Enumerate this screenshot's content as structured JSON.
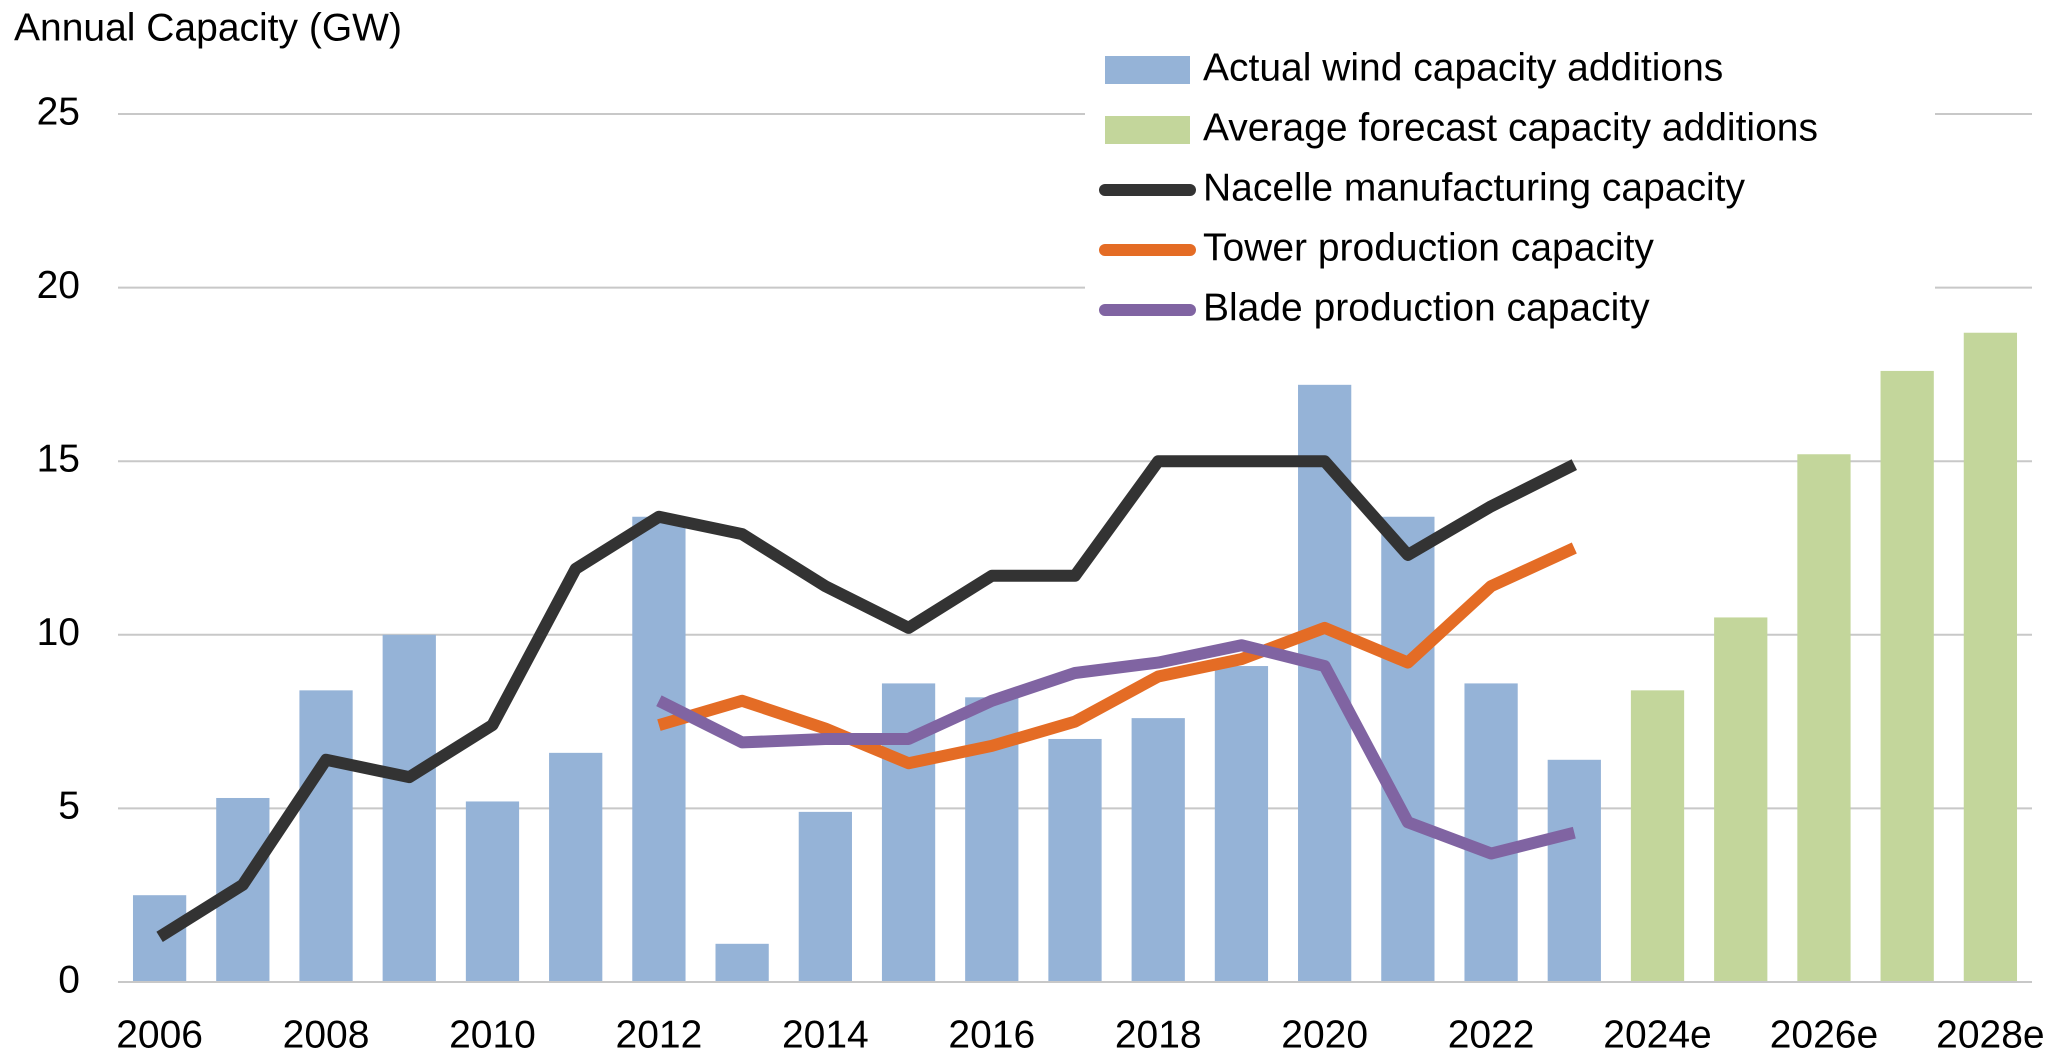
{
  "chart_data": {
    "type": "bar",
    "ylabel": "Annual Capacity (GW)",
    "categories": [
      "2006",
      null,
      "2008",
      null,
      "2010",
      null,
      "2012",
      null,
      "2014",
      null,
      "2016",
      null,
      "2018",
      null,
      "2020",
      null,
      "2022",
      null,
      "2024e",
      null,
      "2026e",
      null,
      "2028e"
    ],
    "ylim": [
      0,
      25
    ],
    "yticks": [
      0,
      5,
      10,
      15,
      20,
      25
    ],
    "grid": true,
    "legend": "top-right",
    "series": [
      {
        "name": "Actual wind capacity additions",
        "type": "bar",
        "color": "#95b3d7",
        "values": [
          2.5,
          5.3,
          8.4,
          10.0,
          5.2,
          6.6,
          13.4,
          1.1,
          4.9,
          8.6,
          8.2,
          7.0,
          7.6,
          9.1,
          17.2,
          13.4,
          8.6,
          6.4,
          null,
          null,
          null,
          null,
          null
        ]
      },
      {
        "name": "Average forecast capacity additions",
        "type": "bar",
        "color": "#c3d69b",
        "values": [
          null,
          null,
          null,
          null,
          null,
          null,
          null,
          null,
          null,
          null,
          null,
          null,
          null,
          null,
          null,
          null,
          null,
          null,
          8.4,
          10.5,
          15.2,
          17.6,
          18.7
        ]
      },
      {
        "name": "Nacelle manufacturing capacity",
        "type": "line",
        "color": "#333333",
        "values": [
          1.3,
          2.8,
          6.4,
          5.9,
          7.4,
          11.9,
          13.4,
          12.9,
          11.4,
          10.2,
          11.7,
          11.7,
          15.0,
          15.0,
          15.0,
          12.3,
          13.7,
          14.9,
          null,
          null,
          null,
          null,
          null
        ]
      },
      {
        "name": "Tower production capacity",
        "type": "line",
        "color": "#e46c25",
        "values": [
          null,
          null,
          null,
          null,
          null,
          null,
          7.4,
          8.1,
          7.3,
          6.3,
          6.8,
          7.5,
          8.8,
          9.3,
          10.2,
          9.2,
          11.4,
          12.5,
          null,
          null,
          null,
          null,
          null
        ]
      },
      {
        "name": "Blade production capacity",
        "type": "line",
        "color": "#8064a2",
        "values": [
          null,
          null,
          null,
          null,
          null,
          null,
          8.1,
          6.9,
          7.0,
          7.0,
          8.1,
          8.9,
          9.2,
          9.7,
          9.1,
          4.6,
          3.7,
          4.3,
          null,
          null,
          null,
          null,
          null
        ]
      }
    ]
  }
}
